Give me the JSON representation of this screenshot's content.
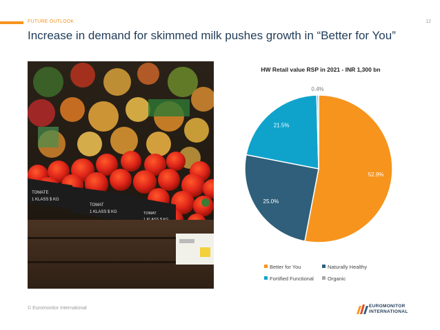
{
  "header": {
    "section": "FUTURE OUTLOOK",
    "page_number": "12"
  },
  "title": "Increase in demand for skimmed milk pushes growth in “Better for You”",
  "photo": {
    "signs": [
      {
        "line1": "TOMATE",
        "line2": "1 KLASS $ KG"
      },
      {
        "line1": "TOMAT",
        "line2": "1 KLASS $ KG"
      },
      {
        "line1": "TOMAT",
        "line2": "1 KLASS $ KG"
      }
    ]
  },
  "chart_data": {
    "type": "pie",
    "title": "HW Retail value RSP in 2021 - INR 1,300 bn",
    "labels": [
      "Better for You",
      "Naturally Healthy",
      "Fortified Functional",
      "Organic"
    ],
    "values": [
      52.9,
      25.0,
      21.5,
      0.4
    ],
    "value_labels": [
      "52.9%",
      "25.0%",
      "21.5%",
      "0.4%"
    ],
    "colors": [
      "#f7941d",
      "#2f5f7a",
      "#0fa3cc",
      "#a6a6a6"
    ],
    "legend_position": "bottom"
  },
  "footer": {
    "copyright": "© Euromonitor International",
    "logo_line1": "EUROMONITOR",
    "logo_line2": "INTERNATIONAL"
  }
}
